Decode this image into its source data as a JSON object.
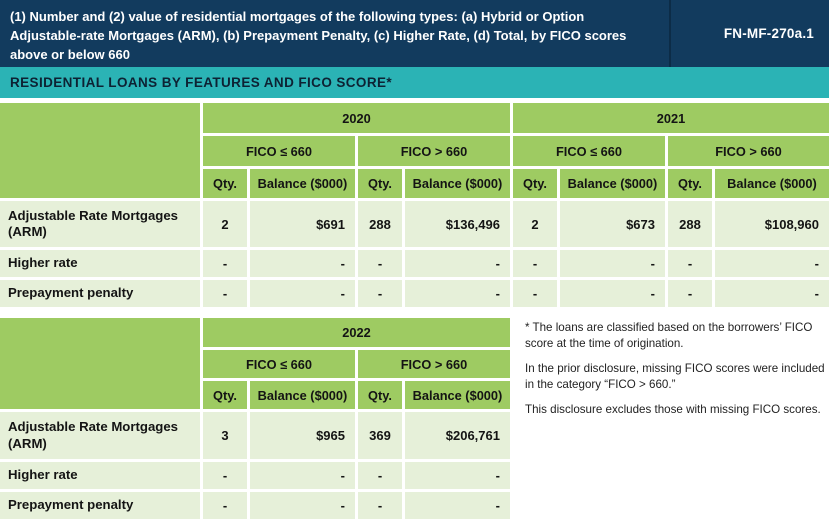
{
  "banner": {
    "title": "(1) Number and (2) value of residential mortgages of the following types: (a) Hybrid or Option Adjustable-rate Mortgages (ARM), (b) Prepayment Penalty, (c) Higher Rate, (d) Total, by FICO scores above or below 660",
    "code": "FN-MF-270a.1"
  },
  "section_title": "RESIDENTIAL LOANS BY FEATURES AND FICO SCORE*",
  "column_headers": {
    "qty": "Qty.",
    "balance": "Balance ($000)",
    "fico_low": "FICO ≤ 660",
    "fico_high": "FICO > 660"
  },
  "table_2020_2021": {
    "years": [
      "2020",
      "2021"
    ],
    "rows": [
      {
        "label": "Adjustable Rate Mortgages (ARM)",
        "values": [
          "2",
          "$691",
          "288",
          "$136,496",
          "2",
          "$673",
          "288",
          "$108,960"
        ]
      },
      {
        "label": "Higher rate",
        "values": [
          "-",
          "-",
          "-",
          "-",
          "-",
          "-",
          "-",
          "-"
        ]
      },
      {
        "label": "Prepayment penalty",
        "values": [
          "-",
          "-",
          "-",
          "-",
          "-",
          "-",
          "-",
          "-"
        ]
      }
    ]
  },
  "table_2022": {
    "year": "2022",
    "rows": [
      {
        "label": "Adjustable Rate Mortgages (ARM)",
        "values": [
          "3",
          "$965",
          "369",
          "$206,761"
        ]
      },
      {
        "label": "Higher rate",
        "values": [
          "-",
          "-",
          "-",
          "-"
        ]
      },
      {
        "label": "Prepayment penalty",
        "values": [
          "-",
          "-",
          "-",
          "-"
        ]
      }
    ]
  },
  "notes": [
    "* The loans are classified based on the borrowers’ FICO score at the time of origination.",
    "In the prior disclosure, missing FICO scores were included in the category “FICO > 660.”",
    "This disclosure excludes those with missing FICO scores."
  ],
  "colors": {
    "banner_navy": "#123B5E",
    "section_teal": "#2BB3B5",
    "header_green": "#9ECB62",
    "row_light_green": "#E6F0D9"
  }
}
